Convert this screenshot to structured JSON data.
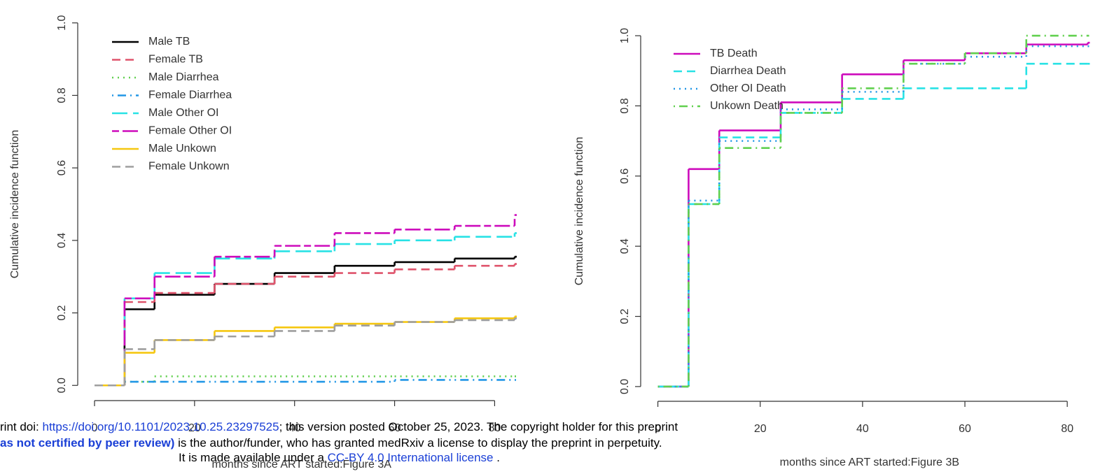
{
  "chart_data": [
    {
      "type": "line",
      "step": true,
      "ylabel": "Cumulative incidence function",
      "xlabel": "months since ART started:Figure 3A",
      "x": [
        0,
        6,
        12,
        24,
        36,
        48,
        60,
        72,
        84
      ],
      "xlim": [
        -3.36,
        87.36
      ],
      "ylim": [
        -0.04,
        1.04
      ],
      "xticks": [
        0,
        20,
        40,
        60,
        80
      ],
      "yticks": [
        {
          "value": 0,
          "label": "0.0"
        },
        {
          "value": 0.2,
          "label": "0.2"
        },
        {
          "value": 0.4,
          "label": "0.4"
        },
        {
          "value": 0.6,
          "label": "0.6"
        },
        {
          "value": 0.8,
          "label": "0.8"
        },
        {
          "value": 1,
          "label": "1.0"
        }
      ],
      "legend": "top-left",
      "series": [
        {
          "name": "Male TB",
          "color": "#000000",
          "dash": "solid",
          "values": [
            0,
            0.21,
            0.25,
            0.28,
            0.31,
            0.33,
            0.34,
            0.35,
            0.355
          ]
        },
        {
          "name": "Female TB",
          "color": "#df536b",
          "dash": "dashed",
          "values": [
            0,
            0.23,
            0.255,
            0.28,
            0.3,
            0.31,
            0.32,
            0.33,
            0.335
          ]
        },
        {
          "name": "Male Diarrhea",
          "color": "#61d04f",
          "dash": "dotted",
          "values": [
            0,
            0.01,
            0.025,
            0.025,
            0.025,
            0.025,
            0.025,
            0.025,
            0.025
          ]
        },
        {
          "name": "Female Diarrhea",
          "color": "#2297e6",
          "dash": "dotdash",
          "values": [
            0,
            0.01,
            0.01,
            0.01,
            0.01,
            0.01,
            0.015,
            0.015,
            0.015
          ]
        },
        {
          "name": "Male Other OI",
          "color": "#28e2e5",
          "dash": "longdash",
          "values": [
            0,
            0.24,
            0.31,
            0.35,
            0.37,
            0.39,
            0.4,
            0.41,
            0.42
          ]
        },
        {
          "name": "Female Other OI",
          "color": "#cd0bbc",
          "dash": "twodash",
          "values": [
            0,
            0.24,
            0.3,
            0.355,
            0.385,
            0.42,
            0.43,
            0.44,
            0.47
          ]
        },
        {
          "name": "Male Unkown",
          "color": "#f5c710",
          "dash": "solid",
          "values": [
            0,
            0.09,
            0.125,
            0.15,
            0.16,
            0.17,
            0.175,
            0.185,
            0.19
          ]
        },
        {
          "name": "Female Unkown",
          "color": "#9e9e9e",
          "dash": "dashed",
          "values": [
            0,
            0.1,
            0.125,
            0.135,
            0.15,
            0.165,
            0.175,
            0.18,
            0.185
          ]
        }
      ]
    },
    {
      "type": "line",
      "step": true,
      "ylabel": "Cumulative incidence function",
      "xlabel": "months since ART started:Figure 3B",
      "x": [
        0,
        6,
        12,
        24,
        36,
        48,
        60,
        72,
        84
      ],
      "xlim": [
        -3.36,
        87.36
      ],
      "ylim": [
        -0.04,
        1.04
      ],
      "xticks": [
        0,
        20,
        40,
        60,
        80
      ],
      "yticks": [
        {
          "value": 0,
          "label": "0.0"
        },
        {
          "value": 0.2,
          "label": "0.2"
        },
        {
          "value": 0.4,
          "label": "0.4"
        },
        {
          "value": 0.6,
          "label": "0.6"
        },
        {
          "value": 0.8,
          "label": "0.8"
        },
        {
          "value": 1,
          "label": "1.0"
        }
      ],
      "legend": "top-left",
      "series": [
        {
          "name": "TB Death",
          "color": "#cd0bbc",
          "dash": "solid",
          "values": [
            0,
            0.62,
            0.73,
            0.81,
            0.89,
            0.93,
            0.95,
            0.975,
            0.98
          ]
        },
        {
          "name": "Diarrhea Death",
          "color": "#28e2e5",
          "dash": "dashed",
          "values": [
            0,
            0.52,
            0.71,
            0.78,
            0.82,
            0.85,
            0.85,
            0.92,
            0.92
          ]
        },
        {
          "name": "Other OI Death",
          "color": "#2297e6",
          "dash": "dotted",
          "values": [
            0,
            0.53,
            0.7,
            0.79,
            0.84,
            0.92,
            0.94,
            0.97,
            0.97
          ]
        },
        {
          "name": "Unkown Death",
          "color": "#61d04f",
          "dash": "dotdash",
          "values": [
            0,
            0.52,
            0.68,
            0.78,
            0.85,
            0.92,
            0.95,
            1,
            1
          ]
        }
      ]
    }
  ],
  "footer": {
    "line1": [
      "rint doi: ",
      "https://doi.org/10.1101/2023.10.25.23297525",
      "; this version posted October 25, 2023. The copyright holder for this preprint"
    ],
    "line2": [
      "as not certified by peer review)",
      " is the author/funder, who has granted medRxiv a license to display the preprint in perpetuity."
    ],
    "line3": [
      "It is made available under a ",
      "CC-BY 4.0 International license",
      " ."
    ]
  }
}
